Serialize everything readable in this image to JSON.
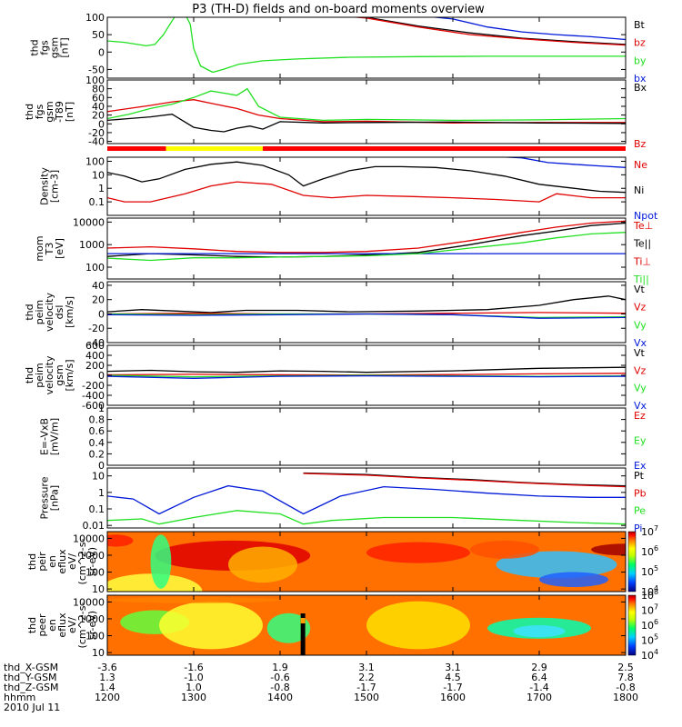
{
  "title": "P3 (TH-D) fields and on-board moments overview",
  "colors": {
    "black": "#000000",
    "red": "#e00000",
    "green": "#20e020",
    "blue": "#0018d8",
    "yellow": "#ffff00",
    "bar_red": "#ff0000"
  },
  "chart_data": [
    {
      "type": "line",
      "id": "fgs_gsm",
      "ylabel": [
        "thd",
        "fgs",
        "gsm",
        "[nT]"
      ],
      "ylim": [
        -75,
        100
      ],
      "yticks": [
        100,
        50,
        0,
        -50
      ],
      "legend": [
        "Bt",
        "bz",
        "by",
        "bx"
      ],
      "series": [
        {
          "name": "Bt",
          "color": "#000000",
          "x": [
            1427,
            1500,
            1560,
            1620,
            1680,
            1740,
            1800
          ],
          "y": [
            115,
            100,
            75,
            55,
            40,
            30,
            22
          ]
        },
        {
          "name": "bz",
          "color": "#e00000",
          "x": [
            1427,
            1500,
            1560,
            1620,
            1680,
            1740,
            1800
          ],
          "y": [
            112,
            98,
            72,
            50,
            38,
            28,
            20
          ]
        },
        {
          "name": "by",
          "color": "#20e020",
          "x": [
            1200,
            1220,
            1245,
            1255,
            1265,
            1275,
            1286,
            1296,
            1300,
            1308,
            1322,
            1334,
            1352,
            1380,
            1420,
            1480,
            1560,
            1640,
            1720,
            1800
          ],
          "y": [
            32,
            28,
            18,
            22,
            50,
            90,
            130,
            80,
            10,
            -40,
            -58,
            -50,
            -35,
            -25,
            -20,
            -15,
            -13,
            -12,
            -12,
            -12
          ]
        },
        {
          "name": "bx",
          "color": "#0018d8",
          "x": [
            1560,
            1600,
            1640,
            1680,
            1720,
            1760,
            1800
          ],
          "y": [
            105,
            95,
            72,
            58,
            50,
            44,
            36
          ]
        }
      ]
    },
    {
      "type": "line",
      "id": "fgs_gsm_t89",
      "ylabel": [
        "thd",
        "fgs",
        "gsm",
        "-T89",
        "[nT]"
      ],
      "ylim": [
        -45,
        100
      ],
      "yticks": [
        100,
        80,
        60,
        40,
        20,
        0,
        -20,
        -40
      ],
      "legend": [
        "Bx",
        "Bz"
      ],
      "series": [
        {
          "name": "Bz",
          "color": "#e00000",
          "x": [
            1200,
            1225,
            1250,
            1275,
            1300,
            1325,
            1350,
            1375,
            1400,
            1450,
            1500,
            1600,
            1700,
            1800
          ],
          "y": [
            28,
            35,
            42,
            50,
            55,
            45,
            35,
            20,
            12,
            5,
            6,
            2,
            3,
            3
          ]
        },
        {
          "name": "By",
          "color": "#20e020",
          "x": [
            1200,
            1225,
            1250,
            1275,
            1300,
            1320,
            1335,
            1350,
            1362,
            1375,
            1400,
            1450,
            1500,
            1600,
            1700,
            1800
          ],
          "y": [
            12,
            22,
            35,
            45,
            60,
            75,
            70,
            65,
            80,
            40,
            15,
            8,
            10,
            8,
            9,
            12
          ]
        },
        {
          "name": "Bx",
          "color": "#000000",
          "x": [
            1200,
            1225,
            1250,
            1275,
            1300,
            1320,
            1335,
            1350,
            1365,
            1380,
            1400,
            1450,
            1500,
            1600,
            1700,
            1800
          ],
          "y": [
            8,
            12,
            16,
            22,
            -8,
            -15,
            -18,
            -10,
            -5,
            -12,
            5,
            2,
            3,
            4,
            2,
            1
          ]
        }
      ]
    },
    {
      "type": "line",
      "id": "density",
      "yscale": "log",
      "ylabel": [
        "Density",
        "[cm-3]"
      ],
      "ylim": [
        0.01,
        200
      ],
      "yticks": [
        100,
        10,
        1,
        0.1
      ],
      "legend": [
        "Ne",
        "Ni",
        "Npot"
      ],
      "series": [
        {
          "name": "Ni",
          "color": "#000000",
          "x": [
            1200,
            1220,
            1240,
            1260,
            1290,
            1320,
            1350,
            1380,
            1410,
            1427,
            1450,
            1480,
            1510,
            1540,
            1580,
            1620,
            1660,
            1700,
            1740,
            1770,
            1800
          ],
          "y": [
            15,
            8,
            3,
            5,
            25,
            60,
            90,
            50,
            10,
            1.5,
            5,
            20,
            40,
            40,
            35,
            20,
            8,
            2,
            1,
            0.6,
            0.5
          ]
        },
        {
          "name": "Ne",
          "color": "#e00000",
          "x": [
            1200,
            1220,
            1250,
            1290,
            1320,
            1350,
            1390,
            1427,
            1460,
            1500,
            1550,
            1600,
            1650,
            1700,
            1720,
            1760,
            1800
          ],
          "y": [
            0.2,
            0.1,
            0.1,
            0.4,
            1.5,
            3,
            2,
            0.3,
            0.2,
            0.3,
            0.25,
            0.2,
            0.15,
            0.1,
            0.4,
            0.2,
            0.2
          ]
        },
        {
          "name": "Npot",
          "color": "#0018d8",
          "x": [
            1650,
            1680,
            1710,
            1740,
            1770,
            1800
          ],
          "y": [
            220,
            180,
            80,
            60,
            45,
            35
          ]
        }
      ]
    },
    {
      "type": "line",
      "id": "mom_temp",
      "yscale": "log",
      "ylabel": [
        "mom",
        "T3",
        "[eV]"
      ],
      "ylim": [
        30,
        15000
      ],
      "yticks": [
        10000,
        1000,
        100
      ],
      "legend": [
        "Te⊥",
        "Te||",
        "Ti⊥",
        "Ti||"
      ],
      "series": [
        {
          "name": "Te⊥",
          "color": "#e00000",
          "x": [
            1200,
            1250,
            1300,
            1350,
            1400,
            1450,
            1500,
            1560,
            1620,
            1680,
            1720,
            1760,
            1800
          ],
          "y": [
            700,
            800,
            650,
            500,
            450,
            450,
            500,
            700,
            1500,
            3500,
            6000,
            9000,
            11000
          ]
        },
        {
          "name": "Te||",
          "color": "#000000",
          "x": [
            1200,
            1250,
            1300,
            1350,
            1400,
            1450,
            1500,
            1560,
            1620,
            1680,
            1720,
            1760,
            1800
          ],
          "y": [
            300,
            400,
            350,
            300,
            280,
            300,
            350,
            450,
            1000,
            2500,
            4000,
            7000,
            9000
          ]
        },
        {
          "name": "Ti⊥",
          "color": "#0018d8",
          "x": [
            1200,
            1800
          ],
          "y": [
            400,
            400
          ]
        },
        {
          "name": "Ti||",
          "color": "#20e020",
          "x": [
            1200,
            1250,
            1300,
            1350,
            1400,
            1450,
            1500,
            1560,
            1620,
            1680,
            1720,
            1760,
            1800
          ],
          "y": [
            250,
            200,
            260,
            260,
            280,
            300,
            320,
            400,
            700,
            1200,
            2000,
            3000,
            3500
          ]
        }
      ]
    },
    {
      "type": "line",
      "id": "peim_velocity_dsl",
      "ylabel": [
        "thd",
        "peim",
        "velocity",
        "dsl",
        "[km/s]"
      ],
      "ylim": [
        -40,
        45
      ],
      "yticks": [
        40,
        20,
        0,
        -20,
        -40
      ],
      "legend": [
        "Vt",
        "Vz",
        "Vy",
        "Vx"
      ],
      "series": [
        {
          "name": "Vt",
          "color": "#000000",
          "x": [
            1200,
            1240,
            1280,
            1320,
            1360,
            1420,
            1480,
            1560,
            1640,
            1700,
            1740,
            1780,
            1800
          ],
          "y": [
            3,
            6,
            4,
            2,
            5,
            5,
            3,
            4,
            6,
            12,
            20,
            25,
            20
          ]
        },
        {
          "name": "Vz",
          "color": "#e00000",
          "x": [
            1200,
            1300,
            1400,
            1500,
            1600,
            1700,
            1800
          ],
          "y": [
            0,
            1,
            0,
            0,
            1,
            2,
            1
          ]
        },
        {
          "name": "Vy",
          "color": "#20e020",
          "x": [
            1200,
            1300,
            1400,
            1500,
            1600,
            1700,
            1800
          ],
          "y": [
            0,
            -1,
            0,
            0,
            -1,
            -5,
            -4
          ]
        },
        {
          "name": "Vx",
          "color": "#0018d8",
          "x": [
            1200,
            1300,
            1400,
            1500,
            1600,
            1700,
            1800
          ],
          "y": [
            -1,
            -2,
            -1,
            0,
            -1,
            -6,
            -5
          ]
        }
      ]
    },
    {
      "type": "line",
      "id": "peim_velocity_gsm",
      "ylabel": [
        "thd",
        "peim",
        "velocity",
        "gsm",
        "[km/s]"
      ],
      "ylim": [
        -600,
        600
      ],
      "yticks": [
        600,
        400,
        200,
        0,
        -200,
        -400,
        -600
      ],
      "legend": [
        "Vt",
        "Vz",
        "Vy",
        "Vx"
      ],
      "series": [
        {
          "name": "Vt",
          "color": "#000000",
          "x": [
            1200,
            1250,
            1300,
            1350,
            1400,
            1450,
            1500,
            1600,
            1700,
            1800
          ],
          "y": [
            80,
            100,
            70,
            60,
            90,
            80,
            60,
            90,
            140,
            160
          ]
        },
        {
          "name": "Vz",
          "color": "#e00000",
          "x": [
            1200,
            1300,
            1400,
            1500,
            1600,
            1700,
            1800
          ],
          "y": [
            10,
            20,
            10,
            5,
            15,
            30,
            40
          ]
        },
        {
          "name": "Vy",
          "color": "#20e020",
          "x": [
            1200,
            1300,
            1400,
            1500,
            1600,
            1700,
            1800
          ],
          "y": [
            0,
            -30,
            -10,
            0,
            -10,
            -20,
            -10
          ]
        },
        {
          "name": "Vx",
          "color": "#0018d8",
          "x": [
            1200,
            1300,
            1400,
            1500,
            1600,
            1700,
            1800
          ],
          "y": [
            -20,
            -60,
            -20,
            -10,
            -20,
            -30,
            -20
          ]
        }
      ]
    },
    {
      "type": "line",
      "id": "e_vxb",
      "ylabel": [
        "E=-VxB",
        "[mV/m]"
      ],
      "ylim": [
        0,
        1
      ],
      "yticks": [
        1.0,
        0.8,
        0.6,
        0.4,
        0.2,
        0.0
      ],
      "legend": [
        "Ez",
        "Ey",
        "Ex"
      ],
      "series": []
    },
    {
      "type": "line",
      "id": "pressure",
      "yscale": "log",
      "ylabel": [
        "Pressure",
        "[nPa]"
      ],
      "ylim": [
        0.007,
        30
      ],
      "yticks": [
        10,
        1,
        0.1,
        0.01
      ],
      "legend": [
        "Pt",
        "Pb",
        "Pe",
        "Pi"
      ],
      "series": [
        {
          "name": "Pt",
          "color": "#000000",
          "x": [
            1427,
            1500,
            1560,
            1620,
            1680,
            1740,
            1800
          ],
          "y": [
            15,
            12,
            8,
            6,
            4,
            3,
            2.5
          ]
        },
        {
          "name": "Pb",
          "color": "#e00000",
          "x": [
            1427,
            1500,
            1560,
            1620,
            1680,
            1740,
            1800
          ],
          "y": [
            14,
            11,
            7.5,
            5.5,
            3.8,
            2.8,
            2.2
          ]
        },
        {
          "name": "Pe",
          "color": "#20e020",
          "x": [
            1200,
            1240,
            1260,
            1300,
            1350,
            1400,
            1427,
            1460,
            1520,
            1600,
            1680,
            1740,
            1800
          ],
          "y": [
            0.02,
            0.025,
            0.012,
            0.03,
            0.08,
            0.05,
            0.012,
            0.02,
            0.03,
            0.03,
            0.02,
            0.015,
            0.012
          ]
        },
        {
          "name": "Pi",
          "color": "#0018d8",
          "x": [
            1200,
            1230,
            1260,
            1300,
            1340,
            1380,
            1427,
            1470,
            1520,
            1580,
            1640,
            1700,
            1760,
            1800
          ],
          "y": [
            0.6,
            0.4,
            0.05,
            0.5,
            2.5,
            1.2,
            0.05,
            0.6,
            2.2,
            1.5,
            0.9,
            0.6,
            0.5,
            0.5
          ]
        }
      ]
    },
    {
      "type": "heatmap",
      "id": "peir_en_eflux",
      "ylabel": [
        "thd",
        "peir",
        "en",
        "eflux",
        "eV/",
        "(cm^2-s-",
        "sr-eV)"
      ],
      "yscale": "log",
      "ylim": [
        7,
        25000
      ],
      "yticks": [
        10000,
        1000,
        100,
        10
      ],
      "colorbar_range": [
        10000,
        10000000
      ],
      "colorbar_ticks": [
        "10^7",
        "10^6",
        "10^5",
        "10^4"
      ]
    },
    {
      "type": "heatmap",
      "id": "peer_en_eflux",
      "ylabel": [
        "thd",
        "peer",
        "en",
        "eflux",
        "eV/",
        "(cm^2-s-",
        "sr-eV)"
      ],
      "yscale": "log",
      "ylim": [
        7,
        25000
      ],
      "yticks": [
        10000,
        1000,
        100,
        10
      ],
      "colorbar_range": [
        10000,
        100000000
      ],
      "colorbar_ticks": [
        "10^8",
        "10^7",
        "10^6",
        "10^5",
        "10^4"
      ]
    }
  ],
  "fgs_bar": [
    {
      "from": 1200,
      "to": 1268,
      "color": "red"
    },
    {
      "from": 1268,
      "to": 1380,
      "color": "yellow"
    },
    {
      "from": 1380,
      "to": 1800,
      "color": "red"
    }
  ],
  "time_axis": {
    "ticks": [
      1200,
      1300,
      1400,
      1500,
      1600,
      1700,
      1800
    ],
    "labels": [
      "1200",
      "1300",
      "1400",
      "1500",
      "1600",
      "1700",
      "1800"
    ]
  },
  "footer": {
    "rows": [
      {
        "name": "thd_X-GSM",
        "values": [
          "-3.6",
          "-1.6",
          "1.9",
          "3.1",
          "3.1",
          "2.9",
          "2.5"
        ]
      },
      {
        "name": "thd_Y-GSM",
        "values": [
          "1.3",
          "-1.0",
          "-0.6",
          "2.2",
          "4.5",
          "6.4",
          "7.8"
        ]
      },
      {
        "name": "thd_Z-GSM",
        "values": [
          "1.4",
          "1.0",
          "-0.8",
          "-1.7",
          "-1.7",
          "-1.4",
          "-0.8"
        ]
      },
      {
        "name": "hhmm",
        "values": [
          "1200",
          "1300",
          "1400",
          "1500",
          "1600",
          "1700",
          "1800"
        ]
      }
    ],
    "date": "2010 Jul 11"
  }
}
